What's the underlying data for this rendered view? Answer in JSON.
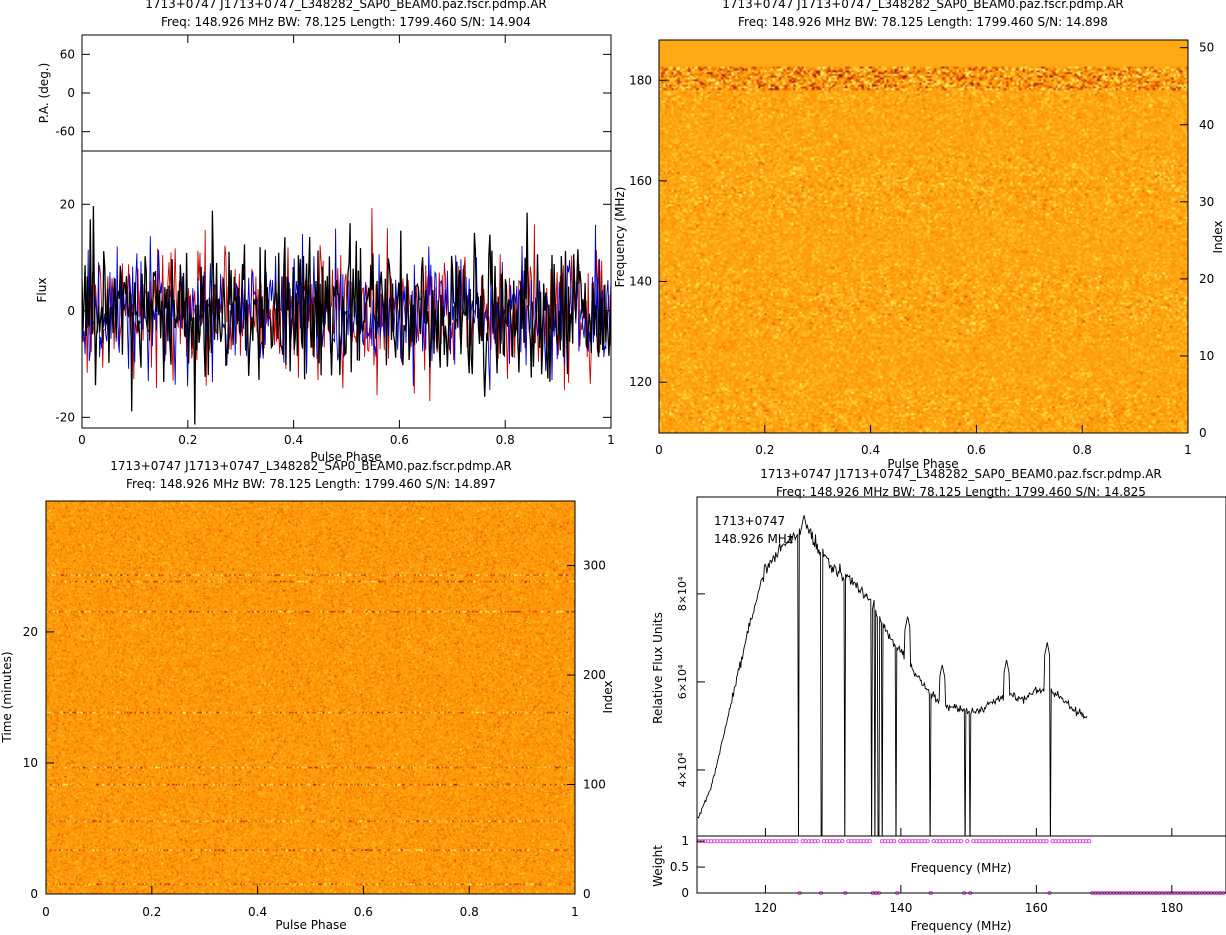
{
  "panels": {
    "profile": {
      "title": "1713+0747  J1713+0747_L348282_SAP0_BEAM0.paz.fscr.pdmp.AR",
      "subtitle": "Freq: 148.926 MHz BW: 78.125 Length: 1799.460 S/N: 14.904",
      "pa_ylabel": "P.A. (deg.)",
      "flux_ylabel": "Flux",
      "xlabel": "Pulse Phase"
    },
    "freq_phase": {
      "title": "1713+0747  J1713+0747_L348282_SAP0_BEAM0.paz.fscr.pdmp.AR",
      "subtitle": "Freq: 148.926 MHz BW: 78.125 Length: 1799.460 S/N: 14.898",
      "ylabel": "Frequency (MHz)",
      "y2label": "Index",
      "xlabel": "Pulse Phase"
    },
    "time_phase": {
      "title": "1713+0747  J1713+0747_L348282_SAP0_BEAM0.paz.fscr.pdmp.AR",
      "subtitle": "Freq: 148.926 MHz BW: 78.125 Length: 1799.460 S/N: 14.897",
      "ylabel": "Time (minutes)",
      "y2label": "Index",
      "xlabel": "Pulse Phase"
    },
    "bandpass": {
      "title": "1713+0747  J1713+0747_L348282_SAP0_BEAM0.paz.fscr.pdmp.AR",
      "subtitle": "Freq: 148.926 MHz BW: 78.125 Length: 1799.460 S/N: 14.825",
      "ylabel": "Relative Flux Units",
      "weight_label": "Weight",
      "inner_xlabel": "Frequency (MHz)",
      "xlabel": "Frequency (MHz)",
      "legend_source": "1713+0747",
      "legend_freq": "148.926 MHz"
    }
  },
  "colors": {
    "stokes_i": "#000000",
    "stokes_l": "#cc0000",
    "stokes_v": "#0000cc",
    "weights": "#e040e0",
    "heatmap_low": "#8b0000",
    "heatmap_mid": "#ff9900",
    "heatmap_high": "#ffff66"
  },
  "chart_data": [
    {
      "type": "line",
      "name": "pulse-profile",
      "xlim": [
        0,
        1
      ],
      "ylim": [
        -22,
        30
      ],
      "xticks": [
        "0",
        "0.2",
        "0.4",
        "0.6",
        "0.8",
        "1"
      ],
      "yticks": [
        "-20",
        "0",
        "20"
      ],
      "pa_ylim": [
        -90,
        90
      ],
      "pa_yticks": [
        "-60",
        "0",
        "60"
      ],
      "series": [
        {
          "key": "I",
          "mean": 0,
          "std": 6.5,
          "bins": 512
        },
        {
          "key": "L",
          "mean": 0,
          "std": 6.0,
          "bins": 512
        },
        {
          "key": "V",
          "mean": 0,
          "std": 5.5,
          "bins": 512
        }
      ]
    },
    {
      "type": "heatmap",
      "name": "frequency-vs-phase",
      "xlim": [
        0,
        1
      ],
      "ylim": [
        109.9,
        188.0
      ],
      "y2lim": [
        0,
        51
      ],
      "xticks": [
        "0",
        "0.2",
        "0.4",
        "0.6",
        "0.8",
        "1"
      ],
      "yticks": [
        "120",
        "140",
        "160",
        "180"
      ],
      "y2ticks": [
        "0",
        "10",
        "20",
        "30",
        "40",
        "50"
      ],
      "channels": 51,
      "flat_channels_above_mhz": 183.0
    },
    {
      "type": "heatmap",
      "name": "time-vs-phase",
      "xlim": [
        0,
        1
      ],
      "ylim": [
        0,
        29.99
      ],
      "y2lim": [
        0,
        359
      ],
      "xticks": [
        "0",
        "0.2",
        "0.4",
        "0.6",
        "0.8",
        "1"
      ],
      "yticks": [
        "0",
        "10",
        "20"
      ],
      "y2ticks": [
        "0",
        "100",
        "200",
        "300"
      ],
      "bright_rows_minutes": [
        0.8,
        3.4,
        5.6,
        8.4,
        9.7,
        13.9,
        21.6,
        23.9,
        24.4
      ]
    },
    {
      "type": "line",
      "name": "bandpass",
      "xlim": [
        109.9,
        188.0
      ],
      "ylim": [
        25000,
        102000
      ],
      "xticks": [
        "120",
        "140",
        "160",
        "180"
      ],
      "yticks": [
        "4×10⁴",
        "6×10⁴",
        "8×10⁴"
      ],
      "x": [
        110,
        112,
        114,
        116,
        118,
        120,
        122,
        124,
        126,
        128,
        130,
        132,
        134,
        136,
        138,
        140,
        142,
        144,
        146,
        148,
        150,
        152,
        154,
        156,
        158,
        160,
        162,
        164,
        166,
        167.5
      ],
      "y": [
        29000,
        36000,
        49000,
        62000,
        75000,
        86000,
        90000,
        93000,
        95000,
        90000,
        86000,
        84000,
        81000,
        77000,
        71000,
        67000,
        62000,
        58000,
        55000,
        54000,
        53000,
        54000,
        56000,
        57000,
        56000,
        58000,
        58000,
        56000,
        53000,
        52000
      ],
      "dropouts_mhz": [
        124.9,
        128.3,
        131.7,
        135.7,
        136.2,
        136.7,
        137.2,
        139.3,
        144.3,
        149.5,
        150.2,
        162.1
      ],
      "spikes": [
        [
          125.7,
          98000
        ],
        [
          146.1,
          64000
        ],
        [
          155.6,
          65000
        ],
        [
          161.6,
          69000
        ],
        [
          141.0,
          75000
        ]
      ],
      "weights_ylim": [
        0,
        1.1
      ],
      "weights_yticks": [
        "0",
        "0.5",
        "1"
      ],
      "weights_zero_mhz": [
        124.9,
        128.3,
        131.7,
        135.7,
        136.2,
        136.7,
        139.3,
        144.3,
        149.5,
        150.2,
        162.1
      ],
      "weights_end_mhz": 167.8
    }
  ]
}
